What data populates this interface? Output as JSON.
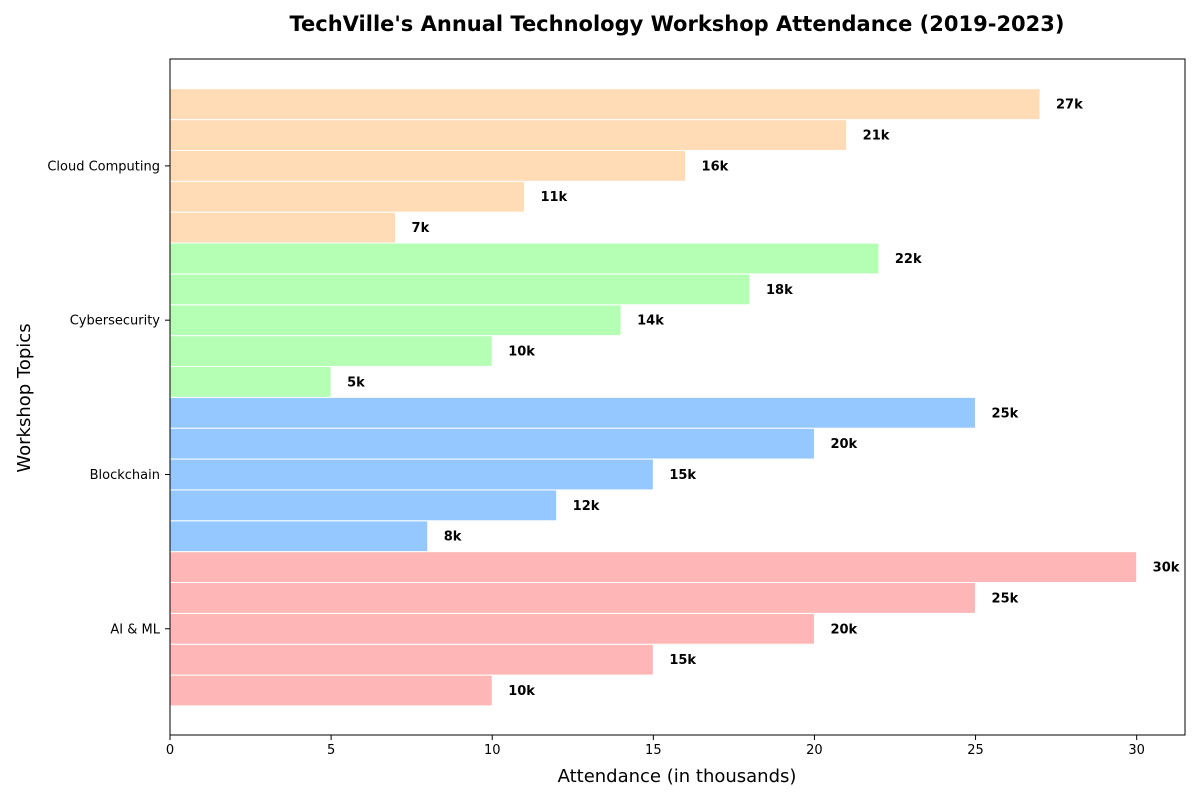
{
  "chart_data": {
    "type": "bar",
    "orientation": "horizontal",
    "title": "TechVille's Annual Technology Workshop Attendance (2019-2023)",
    "xlabel": "Attendance (in thousands)",
    "ylabel": "Workshop Topics",
    "xlim": [
      0,
      31.5
    ],
    "xticks": [
      0,
      5,
      10,
      15,
      20,
      25,
      30
    ],
    "grid": false,
    "legend": "none",
    "categories": [
      "AI & ML",
      "Blockchain",
      "Cybersecurity",
      "Cloud Computing"
    ],
    "colors": [
      "#ffb6b6",
      "#94c8fe",
      "#b5ffb5",
      "#ffdbb6"
    ],
    "groups": [
      {
        "category": "AI & ML",
        "values": [
          10,
          15,
          20,
          25,
          30
        ],
        "labels": [
          "10k",
          "15k",
          "20k",
          "25k",
          "30k"
        ]
      },
      {
        "category": "Blockchain",
        "values": [
          8,
          12,
          15,
          20,
          25
        ],
        "labels": [
          "8k",
          "12k",
          "15k",
          "20k",
          "25k"
        ]
      },
      {
        "category": "Cybersecurity",
        "values": [
          5,
          10,
          14,
          18,
          22
        ],
        "labels": [
          "5k",
          "10k",
          "14k",
          "18k",
          "22k"
        ]
      },
      {
        "category": "Cloud Computing",
        "values": [
          7,
          11,
          16,
          21,
          27
        ],
        "labels": [
          "7k",
          "11k",
          "16k",
          "21k",
          "27k"
        ]
      }
    ]
  }
}
